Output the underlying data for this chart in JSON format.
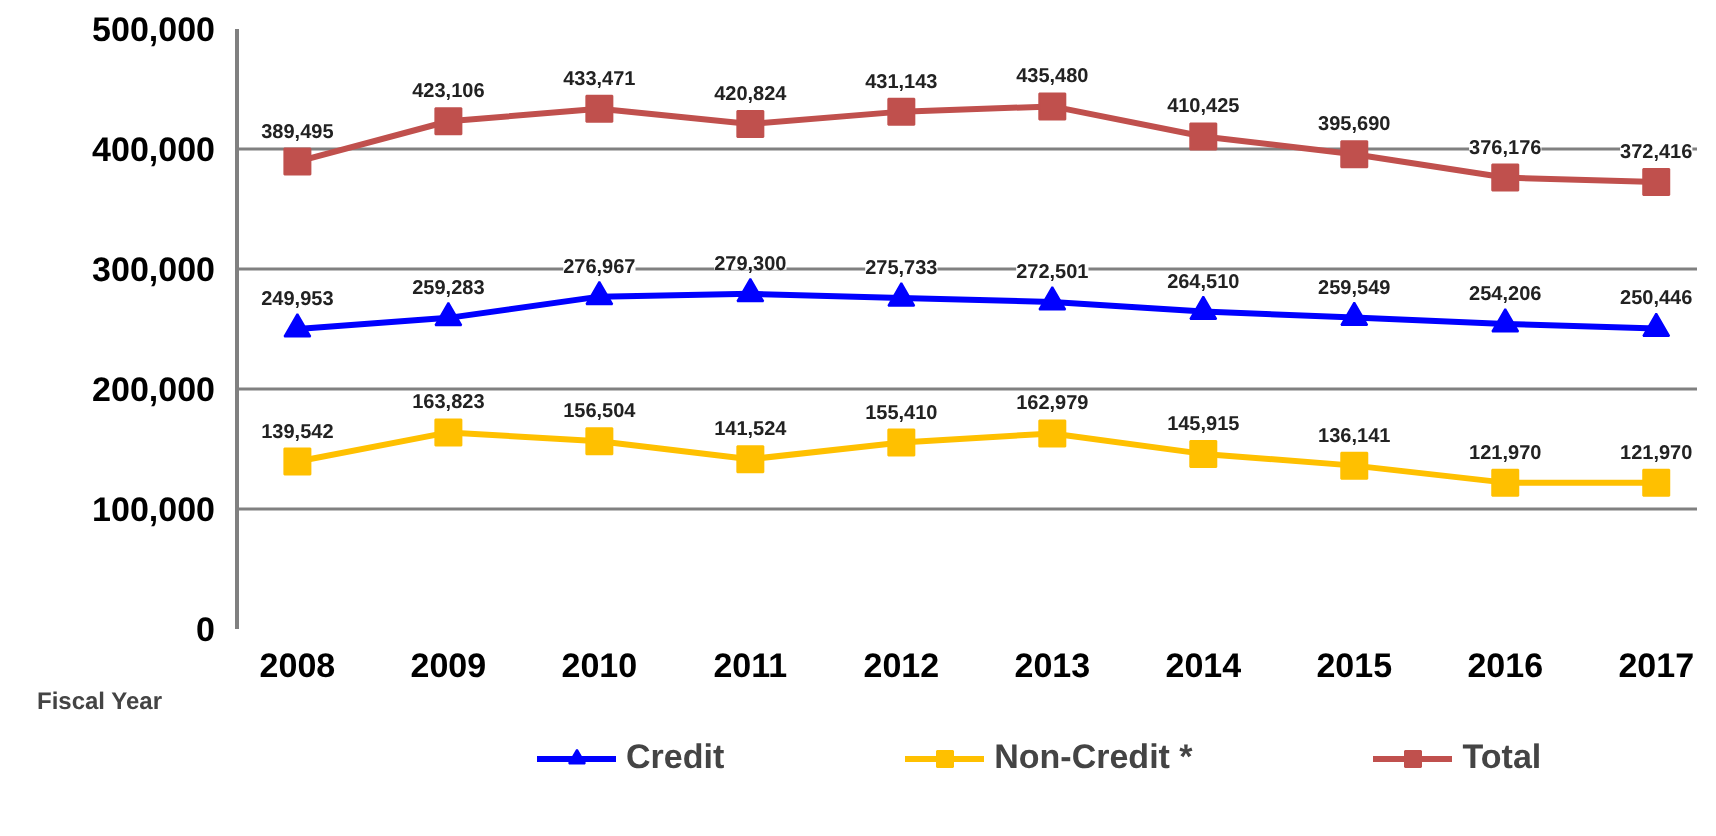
{
  "chart_data": {
    "type": "line",
    "xlabel": "Fiscal Year",
    "categories": [
      "2008",
      "2009",
      "2010",
      "2011",
      "2012",
      "2013",
      "2014",
      "2015",
      "2016",
      "2017"
    ],
    "series": [
      {
        "name": "Credit",
        "color": "#0000ff",
        "marker": "triangle",
        "values": [
          249953,
          259283,
          276967,
          279300,
          275733,
          272501,
          264510,
          259549,
          254206,
          250446
        ],
        "value_labels": [
          "249,953",
          "259,283",
          "276,967",
          "279,300",
          "275,733",
          "272,501",
          "264,510",
          "259,549",
          "254,206",
          "250,446"
        ]
      },
      {
        "name": "Non-Credit *",
        "color": "#ffc000",
        "marker": "square",
        "values": [
          139542,
          163823,
          156504,
          141524,
          155410,
          162979,
          145915,
          136141,
          121970,
          121970
        ],
        "value_labels": [
          "139,542",
          "163,823",
          "156,504",
          "141,524",
          "155,410",
          "162,979",
          "145,915",
          "136,141",
          "121,970",
          "121,970"
        ]
      },
      {
        "name": "Total",
        "color": "#c0504d",
        "marker": "square",
        "values": [
          389495,
          423106,
          433471,
          420824,
          431143,
          435480,
          410425,
          395690,
          376176,
          372416
        ],
        "value_labels": [
          "389,495",
          "423,106",
          "433,471",
          "420,824",
          "431,143",
          "435,480",
          "410,425",
          "395,690",
          "376,176",
          "372,416"
        ]
      }
    ],
    "ylim": [
      0,
      500000
    ],
    "yticks": [
      {
        "value": 0,
        "label": "0"
      },
      {
        "value": 100000,
        "label": "100,000"
      },
      {
        "value": 200000,
        "label": "200,000"
      },
      {
        "value": 300000,
        "label": "300,000"
      },
      {
        "value": 400000,
        "label": "400,000"
      },
      {
        "value": 500000,
        "label": "500,000"
      }
    ],
    "grid": "y",
    "legend": "bottom",
    "line_style": "solid"
  }
}
